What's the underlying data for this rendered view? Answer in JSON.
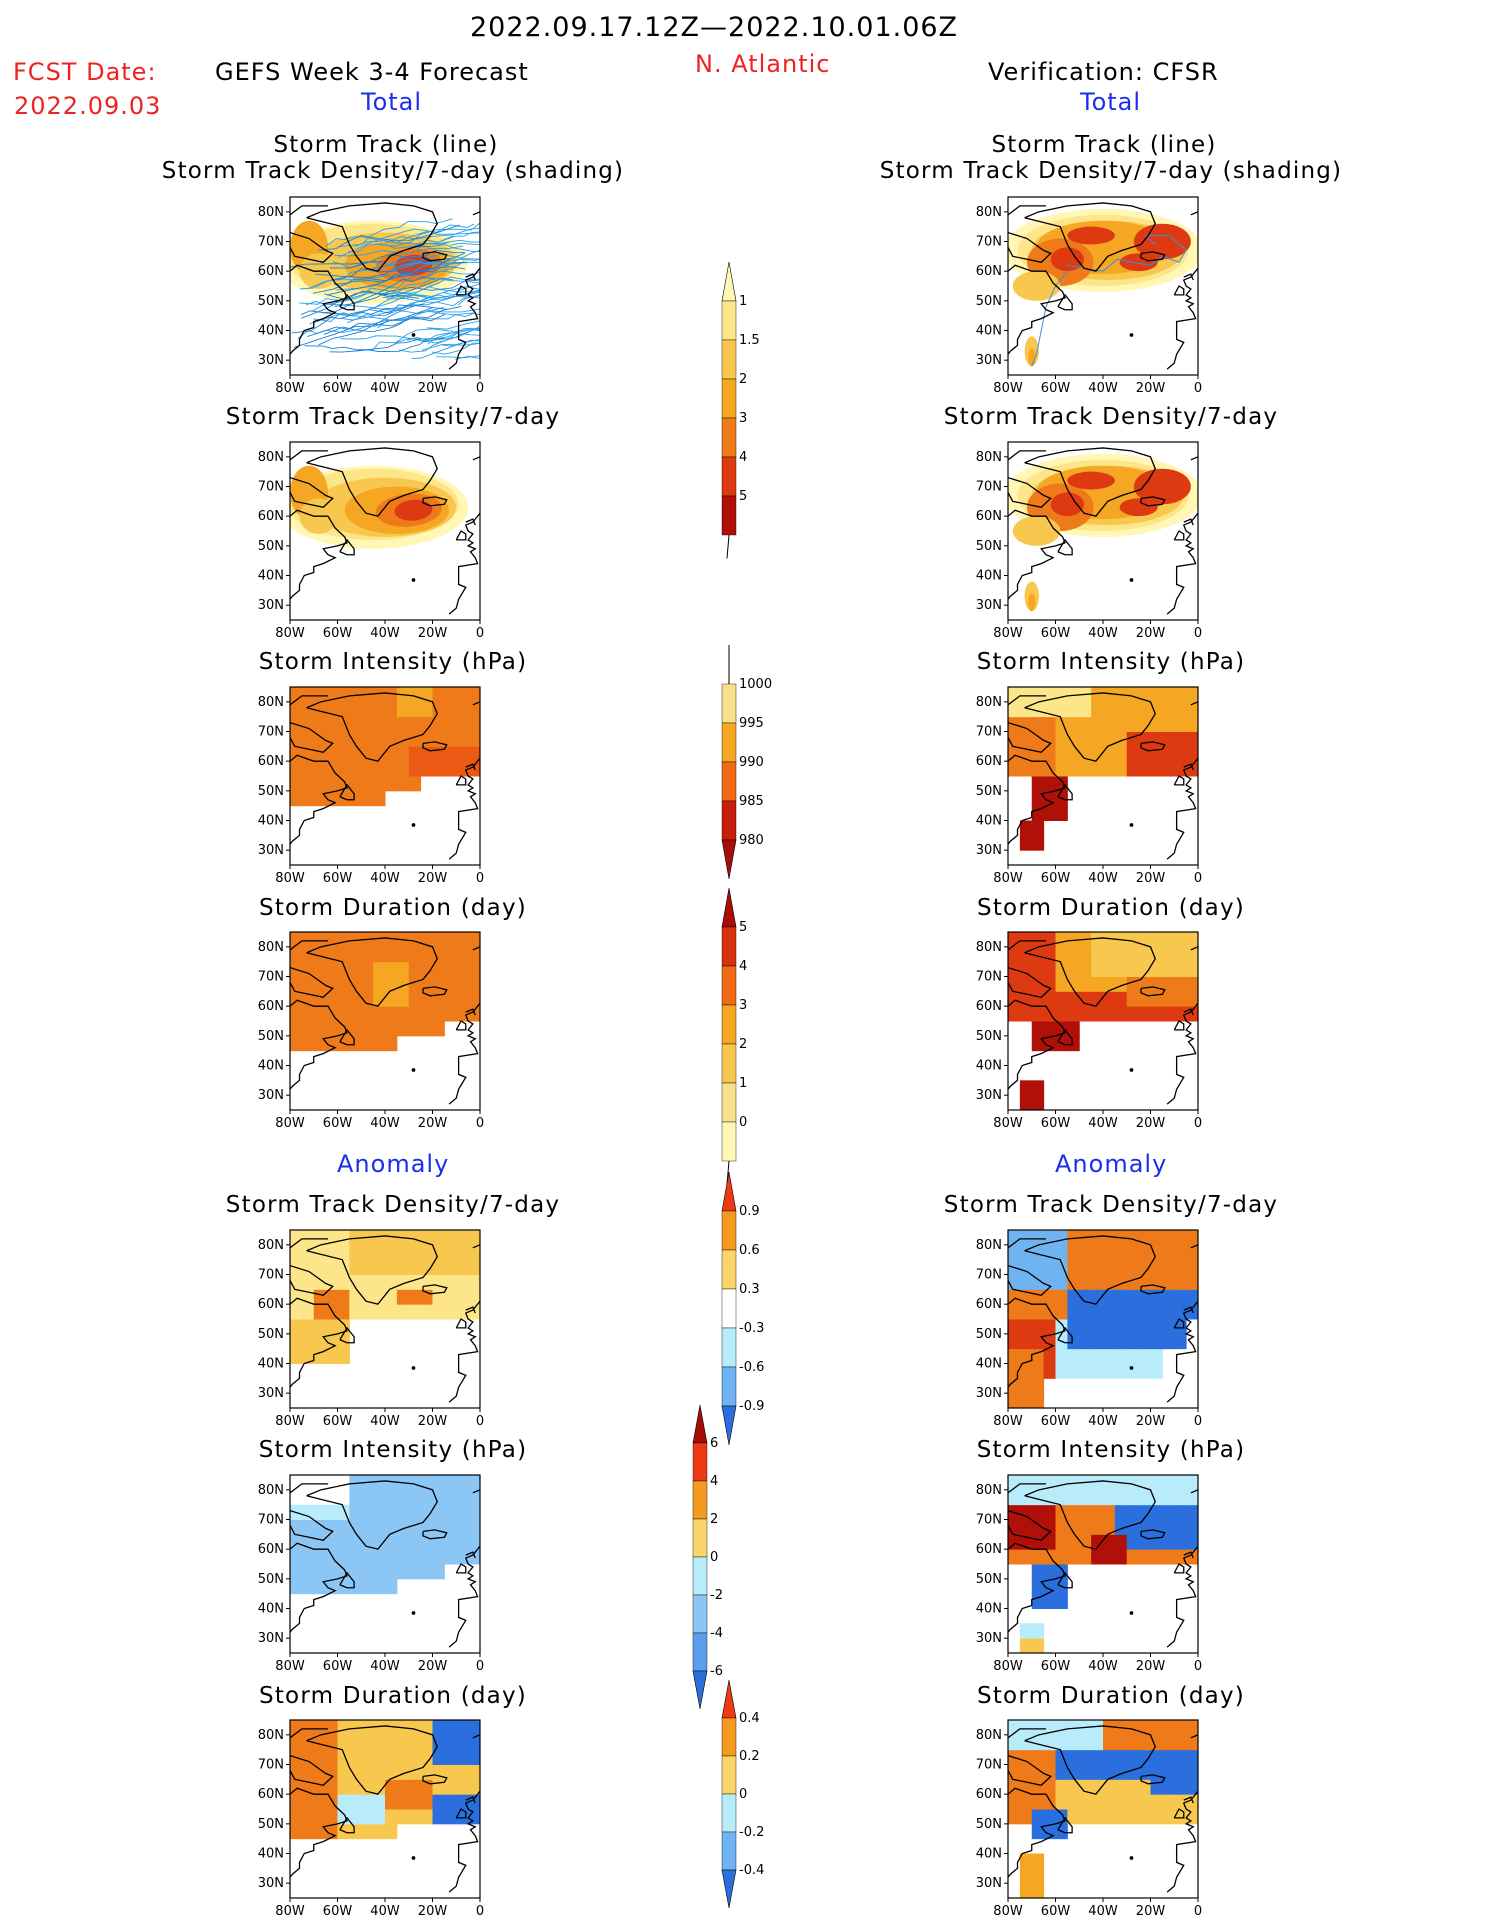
{
  "header": {
    "period": "2022.09.17.12Z—2022.10.01.06Z",
    "fcst_label": "FCST Date:",
    "fcst_date": "2022.09.03",
    "forecast_title": "GEFS Week 3-4 Forecast",
    "region": "N. Atlantic",
    "verification_title": "Verification: CFSR"
  },
  "sections": {
    "total": "Total",
    "anomaly": "Anomaly"
  },
  "panel_titles": {
    "track_line": "Storm Track (line)",
    "track_shading": "Storm Track Density/7-day (shading)",
    "density": "Storm Track Density/7-day",
    "intensity": "Storm Intensity (hPa)",
    "duration": "Storm Duration (day)"
  },
  "map_axes": {
    "lat_labels": [
      "80N",
      "70N",
      "60N",
      "50N",
      "40N",
      "30N"
    ],
    "lon_labels": [
      "80W",
      "60W",
      "40W",
      "20W",
      "0"
    ]
  },
  "colorbars": {
    "density_total": {
      "labels": [
        "1",
        "1.5",
        "2",
        "3",
        "4",
        "5"
      ],
      "colors": [
        "#fff7b3",
        "#fde68a",
        "#f8c84e",
        "#f5a623",
        "#ee7a1a",
        "#dd3a12",
        "#b01008"
      ]
    },
    "intensity_total": {
      "labels": [
        "1000",
        "995",
        "990",
        "985",
        "980"
      ],
      "colors": [
        "#fff7b3",
        "#fbe08c",
        "#f5a623",
        "#ee6a17",
        "#c81e0c",
        "#a80c06"
      ]
    },
    "duration_total": {
      "labels": [
        "5",
        "4",
        "3",
        "2",
        "1",
        "0"
      ],
      "colors": [
        "#a80c06",
        "#d8300f",
        "#ee6a17",
        "#f5a623",
        "#f8c84e",
        "#fbe08c",
        "#fff7b3"
      ]
    },
    "density_anom": {
      "labels": [
        "0.9",
        "0.6",
        "0.3",
        "-0.3",
        "-0.6",
        "-0.9"
      ],
      "colors": [
        "#ee3a14",
        "#f59a20",
        "#fbd56a",
        "#ffffff",
        "#b8ecfb",
        "#6fb4f0",
        "#2a6fdd"
      ]
    },
    "intensity_anom": {
      "labels": [
        "6",
        "4",
        "2",
        "0",
        "-2",
        "-4",
        "-6"
      ],
      "colors": [
        "#a80c06",
        "#ee3a14",
        "#f59a20",
        "#fbd56a",
        "#b8ecfb",
        "#8cc6f5",
        "#5a9eec",
        "#2a6fdd"
      ]
    },
    "duration_anom": {
      "labels": [
        "0.4",
        "0.2",
        "0",
        "-0.2",
        "-0.4"
      ],
      "colors": [
        "#ee3a14",
        "#f59a20",
        "#fbd56a",
        "#b8ecfb",
        "#6fb4f0",
        "#2a6fdd"
      ]
    }
  }
}
